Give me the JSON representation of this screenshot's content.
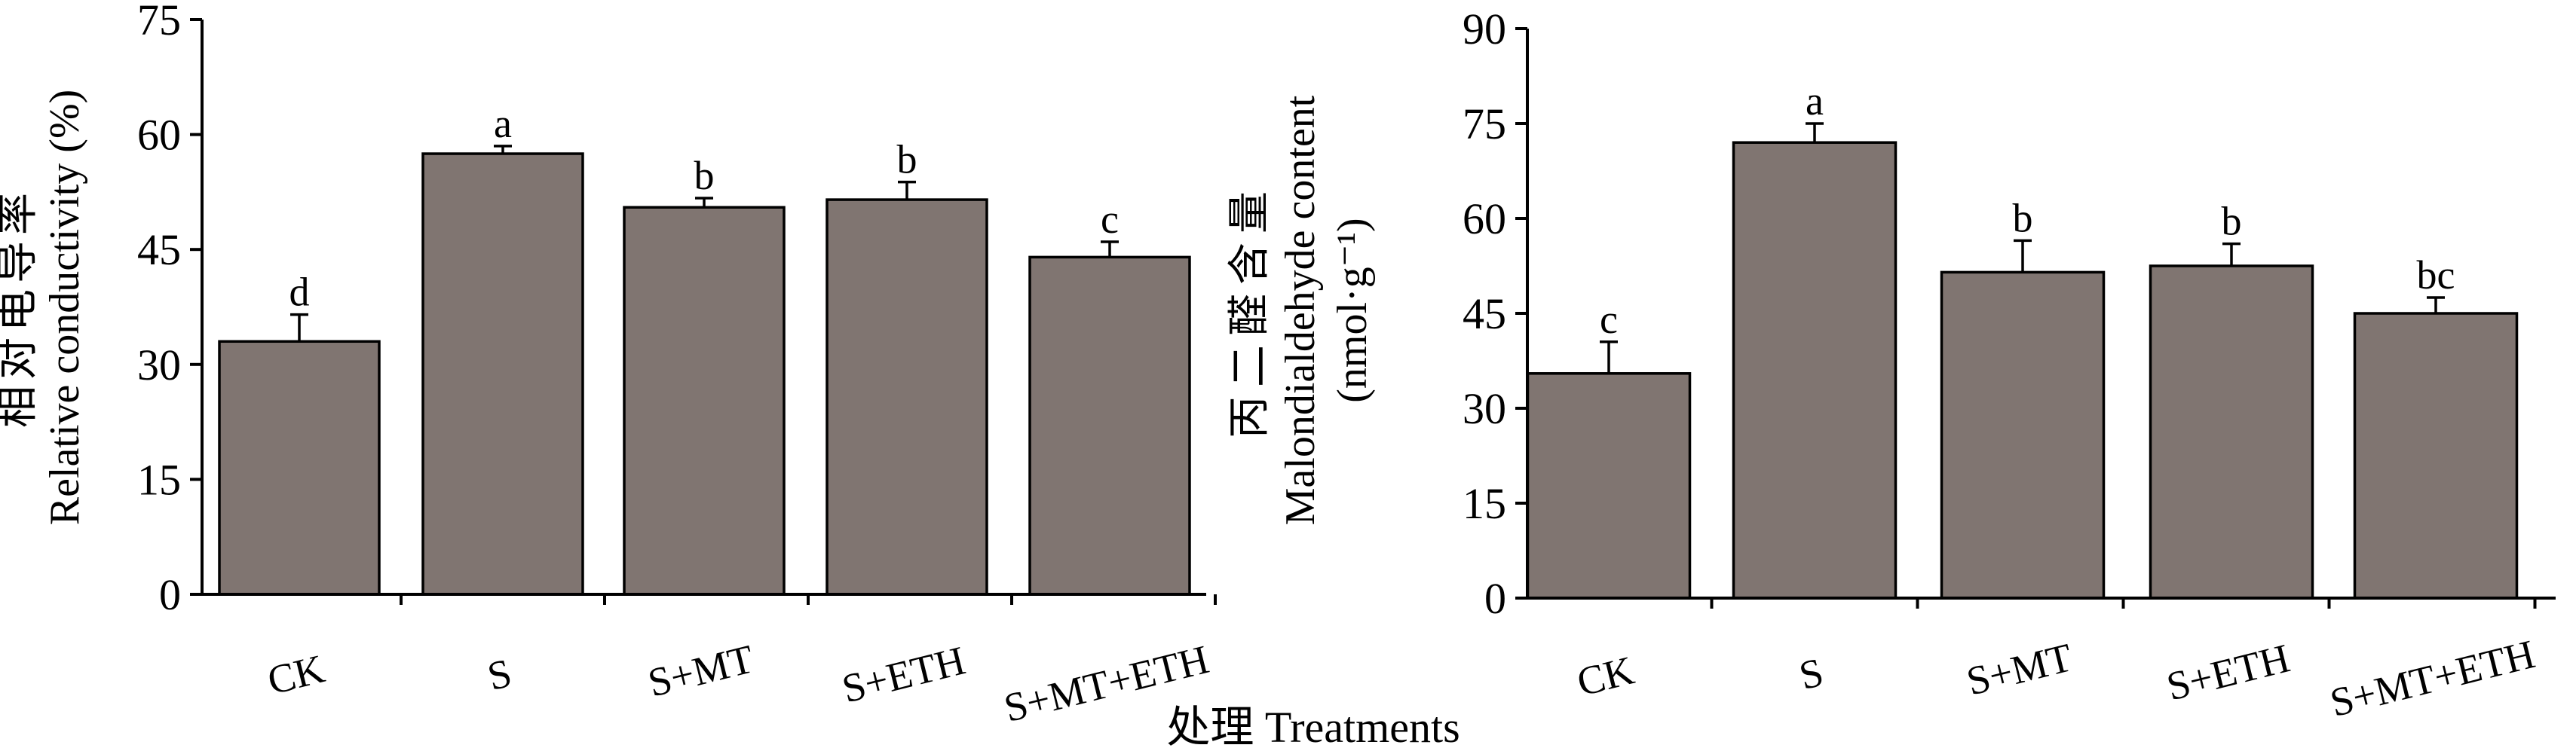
{
  "figure": {
    "common_xlabel": "处理 Treatments",
    "bar_color": "#807571"
  },
  "chart_data": [
    {
      "type": "bar",
      "title": "",
      "ylabel_cn": "相对电导率",
      "ylabel": "Relative conductivity (%)",
      "ylim": [
        0,
        75
      ],
      "yticks": [
        0,
        15,
        30,
        45,
        60,
        75
      ],
      "categories": [
        "CK",
        "S",
        "S+MT",
        "S+ETH",
        "S+MT+ETH"
      ],
      "values": [
        33,
        57.5,
        50.5,
        51.5,
        44
      ],
      "errors": [
        3.5,
        1,
        1.2,
        2.3,
        2
      ],
      "significance": [
        "d",
        "a",
        "b",
        "b",
        "c"
      ]
    },
    {
      "type": "bar",
      "title": "",
      "ylabel_cn": "丙二醛含量",
      "ylabel": "Malondialdehyde content",
      "ylabel_unit": "(nmol·g⁻¹)",
      "ylim": [
        0,
        90
      ],
      "yticks": [
        0,
        15,
        30,
        45,
        60,
        75,
        90
      ],
      "categories": [
        "CK",
        "S",
        "S+MT",
        "S+ETH",
        "S+MT+ETH"
      ],
      "values": [
        35.5,
        72,
        51.5,
        52.5,
        45
      ],
      "errors": [
        5,
        3,
        5,
        3.5,
        2.5
      ],
      "significance": [
        "c",
        "a",
        "b",
        "b",
        "bc"
      ]
    }
  ]
}
